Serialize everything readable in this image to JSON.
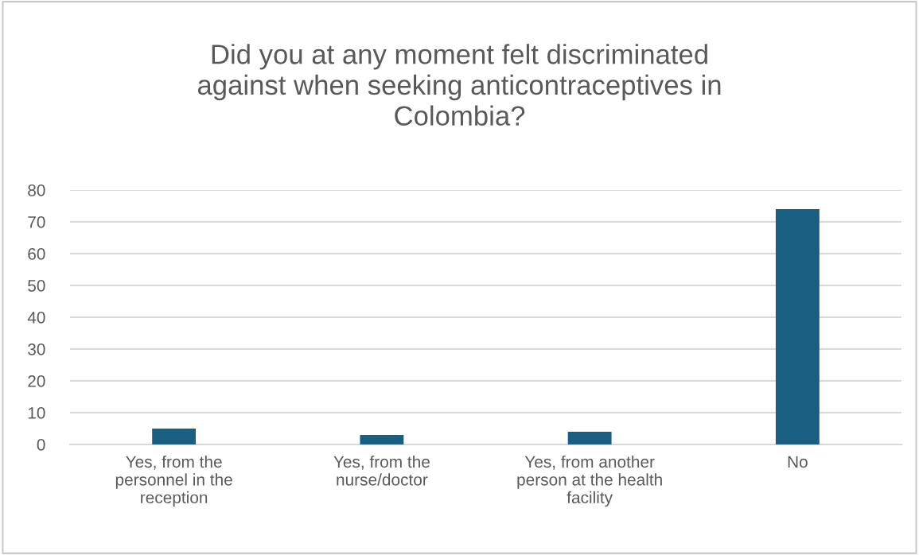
{
  "chart_data": {
    "type": "bar",
    "title": "Did you at any moment felt discriminated against when seeking anticontraceptives in Colombia?",
    "categories": [
      "Yes, from the personnel in the reception",
      "Yes, from the nurse/doctor",
      "Yes, from another person at the health facility",
      "No"
    ],
    "values": [
      5,
      3,
      4,
      74
    ],
    "color": "#195f82",
    "ylim": [
      0,
      80
    ],
    "yticks": [
      0,
      10,
      20,
      30,
      40,
      50,
      60,
      70,
      80
    ],
    "grid": "y",
    "legend": false
  }
}
